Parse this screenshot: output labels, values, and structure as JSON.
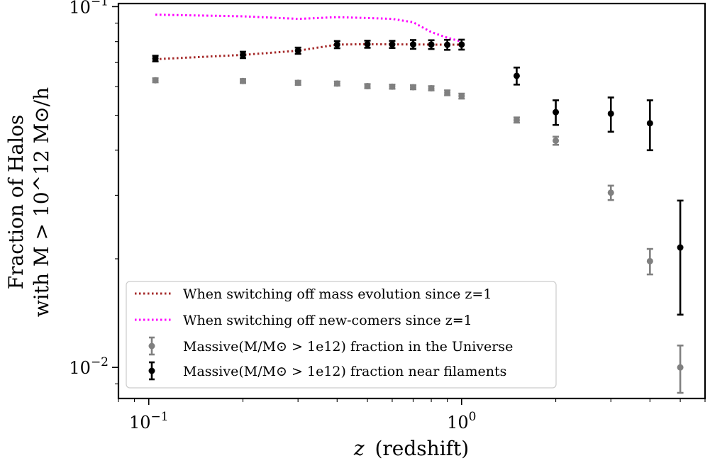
{
  "chart_data": {
    "type": "scatter",
    "xscale": "log",
    "yscale": "log",
    "xlim": [
      0.08,
      6.0
    ],
    "ylim": [
      0.0082,
      0.102
    ],
    "xlabel_math": "z",
    "xlabel_text": "(redshift)",
    "ylabel_line1": "Fraction of Halos",
    "ylabel_line2": "with M > 10^12 M⊙/h",
    "x_ticks": [
      {
        "value": 0.1,
        "base": "10",
        "exp": "−1"
      },
      {
        "value": 1.0,
        "base": "10",
        "exp": "0"
      }
    ],
    "y_ticks": [
      {
        "value": 0.01,
        "base": "10",
        "exp": "−2"
      },
      {
        "value": 0.1,
        "base": "10",
        "exp": "−1"
      }
    ],
    "series": [
      {
        "name": "When switching off mass evolution since z=1",
        "kind": "line",
        "style": "dotted",
        "color": "#a52a2a",
        "x": [
          0.105,
          0.2,
          0.3,
          0.4,
          0.5,
          0.6,
          0.7,
          0.8,
          0.9,
          1.0
        ],
        "y": [
          0.0715,
          0.0735,
          0.0755,
          0.0785,
          0.0787,
          0.0786,
          0.0786,
          0.0785,
          0.0784,
          0.0785
        ]
      },
      {
        "name": "When switching off new-comers since z=1",
        "kind": "line",
        "style": "dotted",
        "color": "#ff00ff",
        "x": [
          0.105,
          0.2,
          0.3,
          0.4,
          0.5,
          0.6,
          0.7,
          0.8,
          0.9,
          1.0
        ],
        "y": [
          0.095,
          0.094,
          0.0925,
          0.0935,
          0.093,
          0.0925,
          0.0905,
          0.085,
          0.082,
          0.08
        ]
      },
      {
        "name": "Massive(M/M⊙ > 1e12) fraction in the Universe",
        "kind": "errorbar",
        "color": "#808080",
        "x": [
          0.105,
          0.2,
          0.3,
          0.4,
          0.5,
          0.6,
          0.7,
          0.8,
          0.9,
          1.0,
          1.5,
          2.0,
          3.0,
          4.0,
          5.0
        ],
        "y": [
          0.0625,
          0.0622,
          0.0615,
          0.0612,
          0.0602,
          0.06,
          0.0598,
          0.0594,
          0.0577,
          0.0565,
          0.0485,
          0.0425,
          0.0305,
          0.0197,
          0.01
        ],
        "err": [
          0.0008,
          0.0008,
          0.0008,
          0.0008,
          0.0008,
          0.0008,
          0.0008,
          0.0008,
          0.0009,
          0.0009,
          0.0008,
          0.0011,
          0.0014,
          0.0016,
          0.0015
        ]
      },
      {
        "name": "Massive(M/M⊙ > 1e12) fraction near filaments",
        "kind": "errorbar",
        "color": "#000000",
        "x": [
          0.105,
          0.2,
          0.3,
          0.4,
          0.5,
          0.6,
          0.7,
          0.8,
          0.9,
          1.0,
          1.5,
          2.0,
          3.0,
          4.0,
          5.0
        ],
        "y": [
          0.0718,
          0.0735,
          0.0755,
          0.0785,
          0.0787,
          0.0786,
          0.0786,
          0.0785,
          0.0784,
          0.0785,
          0.0643,
          0.051,
          0.0505,
          0.0475,
          0.0215
        ],
        "err": [
          0.0013,
          0.0015,
          0.0015,
          0.0018,
          0.0018,
          0.0018,
          0.0022,
          0.0022,
          0.0025,
          0.0025,
          0.0035,
          0.004,
          0.0055,
          0.0075,
          0.0075
        ]
      }
    ],
    "legend_position": "lower-left"
  }
}
